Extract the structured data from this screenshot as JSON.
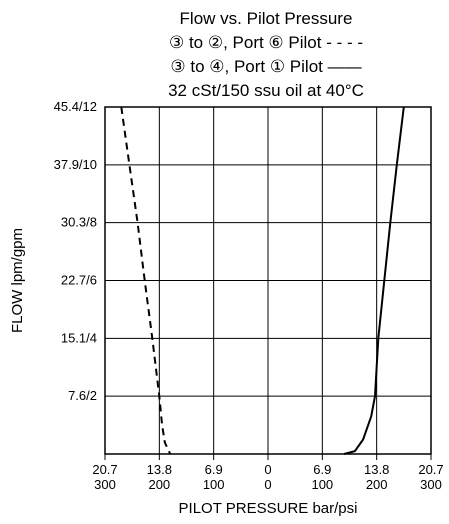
{
  "chart_data": {
    "type": "line",
    "title_lines": [
      "Flow vs. Pilot Pressure",
      "③ to ②, Port ⑥ Pilot - - - -",
      "③ to ④, Port ① Pilot ——",
      "32 cSt/150 ssu oil at 40°C"
    ],
    "xlabel": "PILOT PRESSURE bar/psi",
    "ylabel": "FLOW lpm/gpm",
    "x_ticks": [
      {
        "bar": "20.7",
        "psi": "300",
        "value": -300
      },
      {
        "bar": "13.8",
        "psi": "200",
        "value": -200
      },
      {
        "bar": "6.9",
        "psi": "100",
        "value": -100
      },
      {
        "bar": "0",
        "psi": "0",
        "value": 0
      },
      {
        "bar": "6.9",
        "psi": "100",
        "value": 100
      },
      {
        "bar": "13.8",
        "psi": "200",
        "value": 200
      },
      {
        "bar": "20.7",
        "psi": "300",
        "value": 300
      }
    ],
    "y_ticks": [
      {
        "label": "7.6/2",
        "value": 2
      },
      {
        "label": "15.1/4",
        "value": 4
      },
      {
        "label": "22.7/6",
        "value": 6
      },
      {
        "label": "30.3/8",
        "value": 8
      },
      {
        "label": "37.9/10",
        "value": 10
      },
      {
        "label": "45.4/12",
        "value": 12
      }
    ],
    "xlim": [
      -300,
      300
    ],
    "ylim": [
      0,
      12
    ],
    "grid": true,
    "series": [
      {
        "style": "dashed",
        "color": "#000000",
        "points": [
          [
            -270,
            12
          ],
          [
            -255,
            10
          ],
          [
            -240,
            8
          ],
          [
            -227,
            6
          ],
          [
            -213,
            4
          ],
          [
            -200,
            2
          ],
          [
            -195,
            1
          ],
          [
            -190,
            0.4
          ],
          [
            -180,
            0
          ]
        ]
      },
      {
        "style": "solid",
        "color": "#000000",
        "points": [
          [
            140,
            0
          ],
          [
            160,
            0.1
          ],
          [
            175,
            0.5
          ],
          [
            190,
            1.3
          ],
          [
            197,
            2
          ],
          [
            203,
            4
          ],
          [
            214,
            6
          ],
          [
            225,
            8
          ],
          [
            237,
            10
          ],
          [
            250,
            12
          ]
        ]
      }
    ]
  }
}
